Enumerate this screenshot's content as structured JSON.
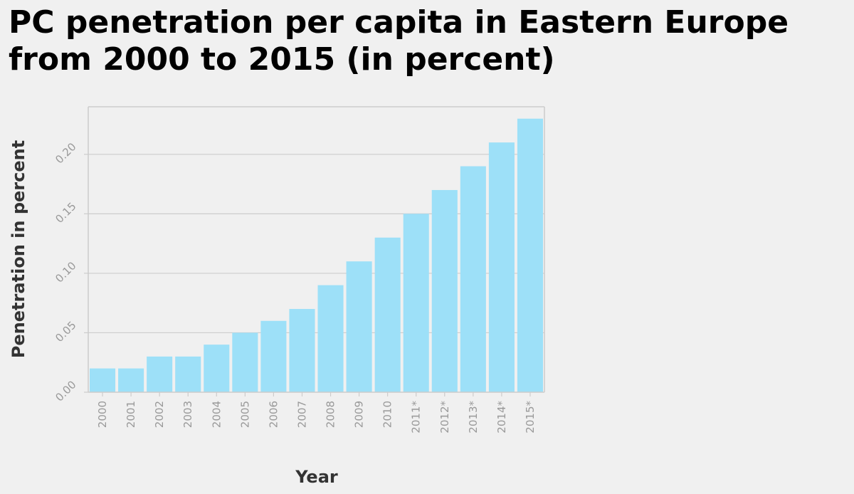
{
  "title_lines": [
    "PC penetration per capita in Eastern Europe",
    "from 2000 to 2015 (in percent)"
  ],
  "colors": {
    "bar": "#9de0f8",
    "grid": "#cccccc",
    "axis": "#cccccc",
    "tick_text": "#999999",
    "label_text": "#333333",
    "background": "#f0f0f0"
  },
  "chart_data": {
    "type": "bar",
    "title": "PC penetration per capita in Eastern Europe from 2000 to 2015 (in percent)",
    "xlabel": "Year",
    "ylabel": "Penetration in percent",
    "categories": [
      "2000",
      "2001",
      "2002",
      "2003",
      "2004",
      "2005",
      "2006",
      "2007",
      "2008",
      "2009",
      "2010",
      "2011*",
      "2012*",
      "2013*",
      "2014*",
      "2015*"
    ],
    "values": [
      0.02,
      0.02,
      0.03,
      0.03,
      0.04,
      0.05,
      0.06,
      0.07,
      0.09,
      0.11,
      0.13,
      0.15,
      0.17,
      0.19,
      0.21,
      0.23
    ],
    "yticks": [
      "0.00",
      "0.05",
      "0.10",
      "0.15",
      "0.20"
    ],
    "ylim": [
      0,
      0.24
    ],
    "grid": true,
    "legend": "none"
  }
}
